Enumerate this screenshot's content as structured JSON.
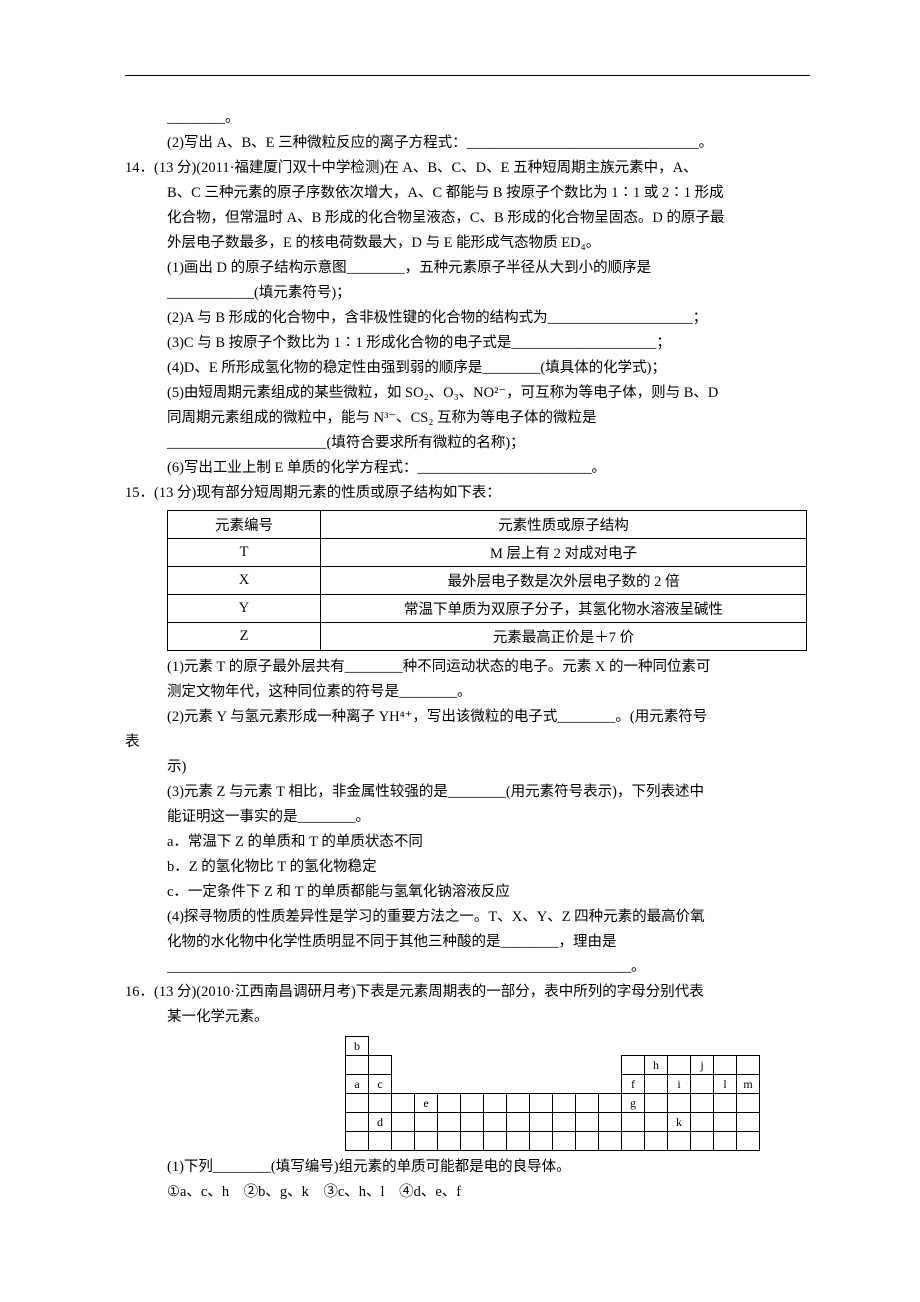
{
  "frag": {
    "l1": "________。",
    "l2": "(2)写出 A、B、E 三种微粒反应的离子方程式：________________________________。"
  },
  "q14": {
    "head": "14．(13 分)(2011·福建厦门双十中学检测)在 A、B、C、D、E 五种短周期主族元素中，A、",
    "l2": "B、C 三种元素的原子序数依次增大，A、C 都能与 B 按原子个数比为 1∶1 或 2∶1 形成",
    "l3": "化合物，但常温时 A、B 形成的化合物呈液态，C、B 形成的化合物呈固态。D 的原子最",
    "l4": "外层电子数最多，E 的核电荷数最大，D 与 E 能形成气态物质 ED₄。",
    "p1a": "(1)画出 D 的原子结构示意图________，五种元素原子半径从大到小的顺序是",
    "p1b": "____________(填元素符号)；",
    "p2": "(2)A 与 B 形成的化合物中，含非极性键的化合物的结构式为____________________；",
    "p3": "(3)C 与 B 按原子个数比为 1∶1 形成化合物的电子式是____________________；",
    "p4": "(4)D、E 所形成氢化物的稳定性由强到弱的顺序是________(填具体的化学式)；",
    "p5a": "(5)由短周期元素组成的某些微粒，如 SO₂、O₃、NO²⁻，可互称为等电子体，则与 B、D",
    "p5b": "同周期元素组成的微粒中，能与 N³⁻、CS₂ 互称为等电子体的微粒是",
    "p5c": "______________________(填符合要求所有微粒的名称)；",
    "p6": "(6)写出工业上制 E 单质的化学方程式：________________________。"
  },
  "q15": {
    "head": "15．(13 分)现有部分短周期元素的性质或原子结构如下表：",
    "table": {
      "headers": [
        "元素编号",
        "元素性质或原子结构"
      ],
      "rows": [
        [
          "T",
          "M 层上有 2 对成对电子"
        ],
        [
          "X",
          "最外层电子数是次外层电子数的 2 倍"
        ],
        [
          "Y",
          "常温下单质为双原子分子，其氢化物水溶液呈碱性"
        ],
        [
          "Z",
          "元素最高正价是＋7 价"
        ]
      ]
    },
    "p1a": "(1)元素 T 的原子最外层共有________种不同运动状态的电子。元素 X 的一种同位素可",
    "p1b": "测定文物年代，这种同位素的符号是________。",
    "p2a": "(2)元素 Y 与氢元素形成一种离子 YH⁴⁺，写出该微粒的电子式________。(用元素符号",
    "p2b_label": "表",
    "p2c": "示)",
    "p3a": "(3)元素 Z 与元素 T 相比，非金属性较强的是________(用元素符号表示)，下列表述中",
    "p3b": "能证明这一事实的是________。",
    "p3c": "a．常温下 Z 的单质和 T 的单质状态不同",
    "p3d": "b．Z 的氢化物比 T 的氢化物稳定",
    "p3e": "c．一定条件下 Z 和 T 的单质都能与氢氧化钠溶液反应",
    "p4a": "(4)探寻物质的性质差异性是学习的重要方法之一。T、X、Y、Z 四种元素的最高价氧",
    "p4b": "化物的水化物中化学性质明显不同于其他三种酸的是________，理由是",
    "p4c": "________________________________________________________________。"
  },
  "q16": {
    "head": "16．(13 分)(2010·江西南昌调研月考)下表是元素周期表的一部分，表中所列的字母分别代表",
    "l2": "某一化学元素。",
    "pt": {
      "rows": [
        {
          "cells": [
            {
              "t": "b",
              "b": 1
            },
            {
              "t": "",
              "b": 0
            },
            {
              "t": "",
              "b": 0
            },
            {
              "t": "",
              "b": 0
            },
            {
              "t": "",
              "b": 0
            },
            {
              "t": "",
              "b": 0
            },
            {
              "t": "",
              "b": 0
            },
            {
              "t": "",
              "b": 0
            },
            {
              "t": "",
              "b": 0
            },
            {
              "t": "",
              "b": 0
            },
            {
              "t": "",
              "b": 0
            },
            {
              "t": "",
              "b": 0
            },
            {
              "t": "",
              "b": 0
            },
            {
              "t": "",
              "b": 0
            },
            {
              "t": "",
              "b": 0
            },
            {
              "t": "",
              "b": 0
            },
            {
              "t": "",
              "b": 0
            },
            {
              "t": "",
              "b": 0
            }
          ]
        },
        {
          "cells": [
            {
              "t": "",
              "b": 1
            },
            {
              "t": "",
              "b": 1
            },
            {
              "t": "",
              "b": 0
            },
            {
              "t": "",
              "b": 0
            },
            {
              "t": "",
              "b": 0
            },
            {
              "t": "",
              "b": 0
            },
            {
              "t": "",
              "b": 0
            },
            {
              "t": "",
              "b": 0
            },
            {
              "t": "",
              "b": 0
            },
            {
              "t": "",
              "b": 0
            },
            {
              "t": "",
              "b": 0
            },
            {
              "t": "",
              "b": 0
            },
            {
              "t": "",
              "b": 1
            },
            {
              "t": "h",
              "b": 1
            },
            {
              "t": "",
              "b": 1
            },
            {
              "t": "j",
              "b": 1
            },
            {
              "t": "",
              "b": 1
            },
            {
              "t": "",
              "b": 1
            }
          ]
        },
        {
          "cells": [
            {
              "t": "a",
              "b": 1
            },
            {
              "t": "c",
              "b": 1
            },
            {
              "t": "",
              "b": 0
            },
            {
              "t": "",
              "b": 0
            },
            {
              "t": "",
              "b": 0
            },
            {
              "t": "",
              "b": 0
            },
            {
              "t": "",
              "b": 0
            },
            {
              "t": "",
              "b": 0
            },
            {
              "t": "",
              "b": 0
            },
            {
              "t": "",
              "b": 0
            },
            {
              "t": "",
              "b": 0
            },
            {
              "t": "",
              "b": 0
            },
            {
              "t": "f",
              "b": 1
            },
            {
              "t": "",
              "b": 1
            },
            {
              "t": "i",
              "b": 1
            },
            {
              "t": "",
              "b": 1
            },
            {
              "t": "l",
              "b": 1
            },
            {
              "t": "m",
              "b": 1
            }
          ]
        },
        {
          "cells": [
            {
              "t": "",
              "b": 1
            },
            {
              "t": "",
              "b": 1
            },
            {
              "t": "",
              "b": 1
            },
            {
              "t": "e",
              "b": 1
            },
            {
              "t": "",
              "b": 1
            },
            {
              "t": "",
              "b": 1
            },
            {
              "t": "",
              "b": 1
            },
            {
              "t": "",
              "b": 1
            },
            {
              "t": "",
              "b": 1
            },
            {
              "t": "",
              "b": 1
            },
            {
              "t": "",
              "b": 1
            },
            {
              "t": "",
              "b": 1
            },
            {
              "t": "g",
              "b": 1
            },
            {
              "t": "",
              "b": 1
            },
            {
              "t": "",
              "b": 1
            },
            {
              "t": "",
              "b": 1
            },
            {
              "t": "",
              "b": 1
            },
            {
              "t": "",
              "b": 1
            }
          ]
        },
        {
          "cells": [
            {
              "t": "",
              "b": 1
            },
            {
              "t": "d",
              "b": 1
            },
            {
              "t": "",
              "b": 1
            },
            {
              "t": "",
              "b": 1
            },
            {
              "t": "",
              "b": 1
            },
            {
              "t": "",
              "b": 1
            },
            {
              "t": "",
              "b": 1
            },
            {
              "t": "",
              "b": 1
            },
            {
              "t": "",
              "b": 1
            },
            {
              "t": "",
              "b": 1
            },
            {
              "t": "",
              "b": 1
            },
            {
              "t": "",
              "b": 1
            },
            {
              "t": "",
              "b": 1
            },
            {
              "t": "",
              "b": 1
            },
            {
              "t": "k",
              "b": 1
            },
            {
              "t": "",
              "b": 1
            },
            {
              "t": "",
              "b": 1
            },
            {
              "t": "",
              "b": 1
            }
          ]
        },
        {
          "cells": [
            {
              "t": "",
              "b": 1
            },
            {
              "t": "",
              "b": 1
            },
            {
              "t": "",
              "b": 1
            },
            {
              "t": "",
              "b": 1
            },
            {
              "t": "",
              "b": 1
            },
            {
              "t": "",
              "b": 1
            },
            {
              "t": "",
              "b": 1
            },
            {
              "t": "",
              "b": 1
            },
            {
              "t": "",
              "b": 1
            },
            {
              "t": "",
              "b": 1
            },
            {
              "t": "",
              "b": 1
            },
            {
              "t": "",
              "b": 1
            },
            {
              "t": "",
              "b": 1
            },
            {
              "t": "",
              "b": 1
            },
            {
              "t": "",
              "b": 1
            },
            {
              "t": "",
              "b": 1
            },
            {
              "t": "",
              "b": 1
            },
            {
              "t": "",
              "b": 1
            }
          ]
        }
      ]
    },
    "p1": "(1)下列________(填写编号)组元素的单质可能都是电的良导体。",
    "p1opts": "①a、c、h　②b、g、k　③c、h、l　④d、e、f"
  }
}
